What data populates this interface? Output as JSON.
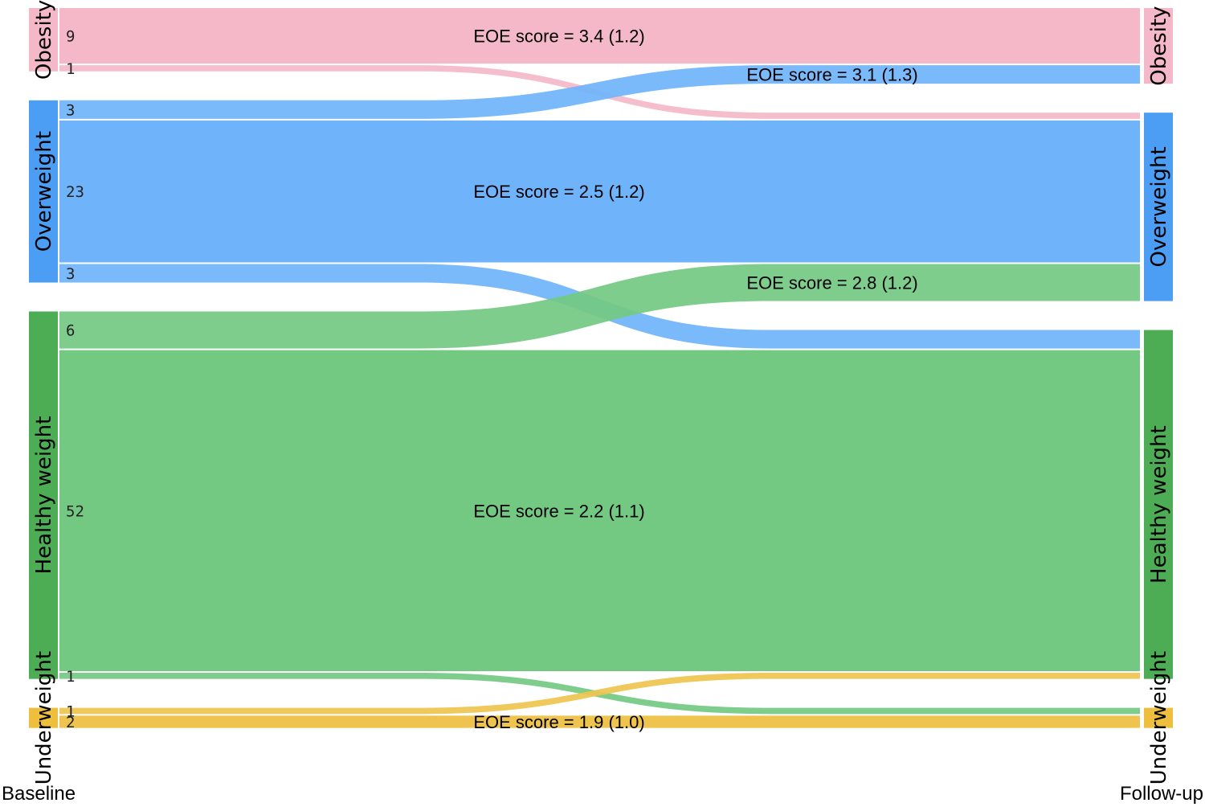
{
  "chart_data": {
    "type": "sankey",
    "axes": {
      "left": "Baseline",
      "right": "Follow-up"
    },
    "categories": [
      {
        "id": "obesity",
        "name": "Obesity",
        "color": "#f4b8c9",
        "node_color": "#f4b8c9"
      },
      {
        "id": "overweight",
        "name": "Overweight",
        "color": "#6fb4fb",
        "node_color": "#4c9ef5"
      },
      {
        "id": "healthy",
        "name": "Healthy weight",
        "color": "#73c982",
        "node_color": "#4cad55"
      },
      {
        "id": "underweight",
        "name": "Underweight",
        "color": "#eec44e",
        "node_color": "#eebf3d"
      }
    ],
    "flows": [
      {
        "from": "obesity",
        "to": "obesity",
        "value": 9,
        "count_label": "9",
        "eoe": "EOE score = 3.4 (1.2)"
      },
      {
        "from": "obesity",
        "to": "overweight",
        "value": 1,
        "count_label": "1",
        "eoe": ""
      },
      {
        "from": "overweight",
        "to": "obesity",
        "value": 3,
        "count_label": "3",
        "eoe": "EOE score = 3.1 (1.3)"
      },
      {
        "from": "overweight",
        "to": "overweight",
        "value": 23,
        "count_label": "23",
        "eoe": "EOE score = 2.5 (1.2)"
      },
      {
        "from": "overweight",
        "to": "healthy",
        "value": 3,
        "count_label": "3",
        "eoe": ""
      },
      {
        "from": "healthy",
        "to": "overweight",
        "value": 6,
        "count_label": "6",
        "eoe": "EOE score = 2.8 (1.2)"
      },
      {
        "from": "healthy",
        "to": "healthy",
        "value": 52,
        "count_label": "52",
        "eoe": "EOE score = 2.2 (1.1)"
      },
      {
        "from": "healthy",
        "to": "underweight",
        "value": 1,
        "count_label": "1",
        "eoe": ""
      },
      {
        "from": "underweight",
        "to": "healthy",
        "value": 1,
        "count_label": "1",
        "eoe": ""
      },
      {
        "from": "underweight",
        "to": "underweight",
        "value": 2,
        "count_label": "2",
        "eoe": "EOE score = 1.9 (1.0)"
      }
    ]
  }
}
